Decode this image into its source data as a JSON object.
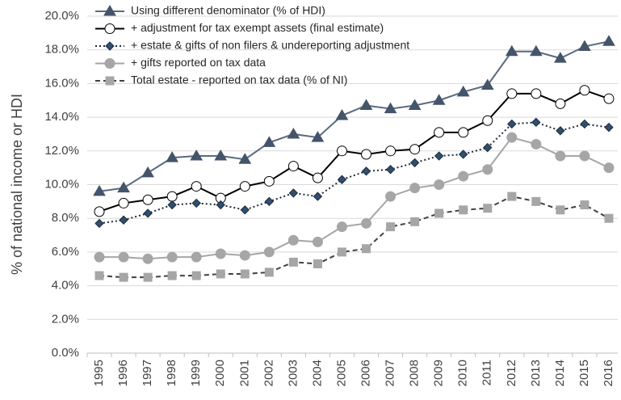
{
  "chart_data": {
    "type": "line",
    "y_label": "% of national income or HDI",
    "categories": [
      "1995",
      "1996",
      "1997",
      "1998",
      "1999",
      "2000",
      "2001",
      "2002",
      "2003",
      "2004",
      "2005",
      "2006",
      "2007",
      "2008",
      "2009",
      "2010",
      "2011",
      "2012",
      "2013",
      "2014",
      "2015",
      "2016"
    ],
    "ylim": [
      0,
      20
    ],
    "yticks": [
      {
        "value": 0,
        "label": "0.0%"
      },
      {
        "value": 2,
        "label": "2.0%"
      },
      {
        "value": 4,
        "label": "4.0%"
      },
      {
        "value": 6,
        "label": "6.0%"
      },
      {
        "value": 8,
        "label": "8.0%"
      },
      {
        "value": 10,
        "label": "10.0%"
      },
      {
        "value": 12,
        "label": "12.0%"
      },
      {
        "value": 14,
        "label": "14.0%"
      },
      {
        "value": 16,
        "label": "16.0%"
      },
      {
        "value": 18,
        "label": "18.0%"
      },
      {
        "value": 20,
        "label": "20.0%"
      }
    ],
    "grid": true,
    "legend": "top-left",
    "series": [
      {
        "name": "Using different denominator (% of HDI)",
        "color": "#5b6a7e",
        "fill": "#44546a",
        "marker": "triangle",
        "dash": "solid",
        "values": [
          9.6,
          9.8,
          10.7,
          11.6,
          11.7,
          11.7,
          11.5,
          12.5,
          13.0,
          12.8,
          14.1,
          14.7,
          14.5,
          14.7,
          15.0,
          15.5,
          15.9,
          17.9,
          17.9,
          17.5,
          18.2,
          18.5
        ]
      },
      {
        "name": "+ adjustment for tax exempt assets (final estimate)",
        "color": "#000000",
        "fill": "#ffffff",
        "marker": "circle",
        "dash": "solid",
        "values": [
          8.4,
          8.9,
          9.1,
          9.3,
          9.9,
          9.2,
          9.9,
          10.2,
          11.1,
          10.4,
          12.0,
          11.8,
          12.0,
          12.1,
          13.1,
          13.1,
          13.8,
          15.4,
          15.4,
          14.8,
          15.6,
          15.1
        ]
      },
      {
        "name": "+ estate & gifts of non filers & undereporting adjustment",
        "color": "#1f2a3c",
        "fill": "#2f4f6f",
        "marker": "diamond",
        "dash": "dotted",
        "values": [
          7.7,
          7.9,
          8.3,
          8.8,
          8.9,
          8.8,
          8.5,
          9.0,
          9.5,
          9.3,
          10.3,
          10.8,
          10.9,
          11.3,
          11.7,
          11.8,
          12.2,
          13.6,
          13.7,
          13.2,
          13.6,
          13.4
        ]
      },
      {
        "name": "+ gifts reported on tax data",
        "color": "#a6a6a6",
        "fill": "#a6a6a6",
        "marker": "circle",
        "dash": "solid",
        "values": [
          5.7,
          5.7,
          5.6,
          5.7,
          5.7,
          5.9,
          5.8,
          6.0,
          6.7,
          6.6,
          7.5,
          7.7,
          9.3,
          9.8,
          10.0,
          10.5,
          10.9,
          12.8,
          12.4,
          11.7,
          11.7,
          11.0
        ]
      },
      {
        "name": "Total estate - reported on tax data (% of NI)",
        "color": "#404040",
        "fill": "#a6a6a6",
        "marker": "square",
        "dash": "dashed",
        "values": [
          4.6,
          4.5,
          4.5,
          4.6,
          4.6,
          4.7,
          4.7,
          4.8,
          5.4,
          5.3,
          6.0,
          6.2,
          7.5,
          7.8,
          8.3,
          8.5,
          8.6,
          9.3,
          9.0,
          8.5,
          8.8,
          8.0
        ]
      }
    ]
  }
}
